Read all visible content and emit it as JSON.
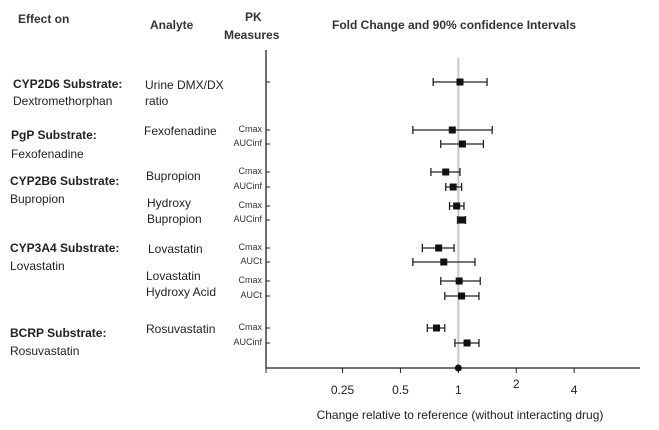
{
  "headers": {
    "effect_on": "Effect on",
    "analyte": "Analyte",
    "pk_measures_1": "PK",
    "pk_measures_2": "Measures"
  },
  "groups": [
    {
      "name": "CYP2D6 Substrate:",
      "drug": "Dextromethorphan"
    },
    {
      "name": "PgP Substrate:",
      "drug": "Fexofenadine"
    },
    {
      "name": "CYP2B6 Substrate:",
      "drug": "Bupropion"
    },
    {
      "name": "CYP3A4 Substrate:",
      "drug": "Lovastatin"
    },
    {
      "name": "BCRP Substrate:",
      "drug": "Rosuvastatin"
    }
  ],
  "analytes": [
    {
      "line1": "Urine DMX/DX",
      "line2": "ratio"
    },
    {
      "line1": "Fexofenadine",
      "line2": ""
    },
    {
      "line1": "Bupropion",
      "line2": ""
    },
    {
      "line1": "Hydroxy",
      "line2": "Bupropion"
    },
    {
      "line1": "Lovastatin",
      "line2": ""
    },
    {
      "line1": "Lovastatin",
      "line2": "Hydroxy Acid"
    },
    {
      "line1": "Rosuvastatin",
      "line2": ""
    }
  ],
  "chart_data": {
    "type": "forest",
    "title": "Fold Change and 90% confidence Intervals",
    "xlabel": "Change relative to reference (without interacting drug)",
    "xscale": "log2",
    "xlim": [
      0.1,
      8.8
    ],
    "xticks": [
      0.25,
      0.5,
      1,
      2,
      4
    ],
    "xtick_labels": [
      "0.25",
      "0.5",
      "1",
      "2",
      "4"
    ],
    "reference_line": 1,
    "rows": [
      {
        "analyte": "Urine DMX/DX ratio",
        "measure": "",
        "estimate": 1.02,
        "lower": 0.74,
        "upper": 1.41
      },
      {
        "analyte": "Fexofenadine",
        "measure": "Cmax",
        "estimate": 0.93,
        "lower": 0.58,
        "upper": 1.5
      },
      {
        "analyte": "Fexofenadine",
        "measure": "AUCinf",
        "estimate": 1.05,
        "lower": 0.81,
        "upper": 1.35
      },
      {
        "analyte": "Bupropion",
        "measure": "Cmax",
        "estimate": 0.86,
        "lower": 0.72,
        "upper": 1.02
      },
      {
        "analyte": "Bupropion",
        "measure": "AUCinf",
        "estimate": 0.94,
        "lower": 0.86,
        "upper": 1.04
      },
      {
        "analyte": "Hydroxy Bupropion",
        "measure": "Cmax",
        "estimate": 0.98,
        "lower": 0.9,
        "upper": 1.07
      },
      {
        "analyte": "Hydroxy Bupropion",
        "measure": "AUCinf",
        "estimate": 1.04,
        "lower": 0.99,
        "upper": 1.09
      },
      {
        "analyte": "Lovastatin",
        "measure": "Cmax",
        "estimate": 0.79,
        "lower": 0.65,
        "upper": 0.95
      },
      {
        "analyte": "Lovastatin",
        "measure": "AUCt",
        "estimate": 0.84,
        "lower": 0.58,
        "upper": 1.22
      },
      {
        "analyte": "Lovastatin Hydroxy Acid",
        "measure": "Cmax",
        "estimate": 1.01,
        "lower": 0.81,
        "upper": 1.3
      },
      {
        "analyte": "Lovastatin Hydroxy Acid",
        "measure": "AUCt",
        "estimate": 1.04,
        "lower": 0.85,
        "upper": 1.28
      },
      {
        "analyte": "Rosuvastatin",
        "measure": "Cmax",
        "estimate": 0.77,
        "lower": 0.69,
        "upper": 0.85
      },
      {
        "analyte": "Rosuvastatin",
        "measure": "AUCinf",
        "estimate": 1.11,
        "lower": 0.96,
        "upper": 1.28
      }
    ]
  }
}
